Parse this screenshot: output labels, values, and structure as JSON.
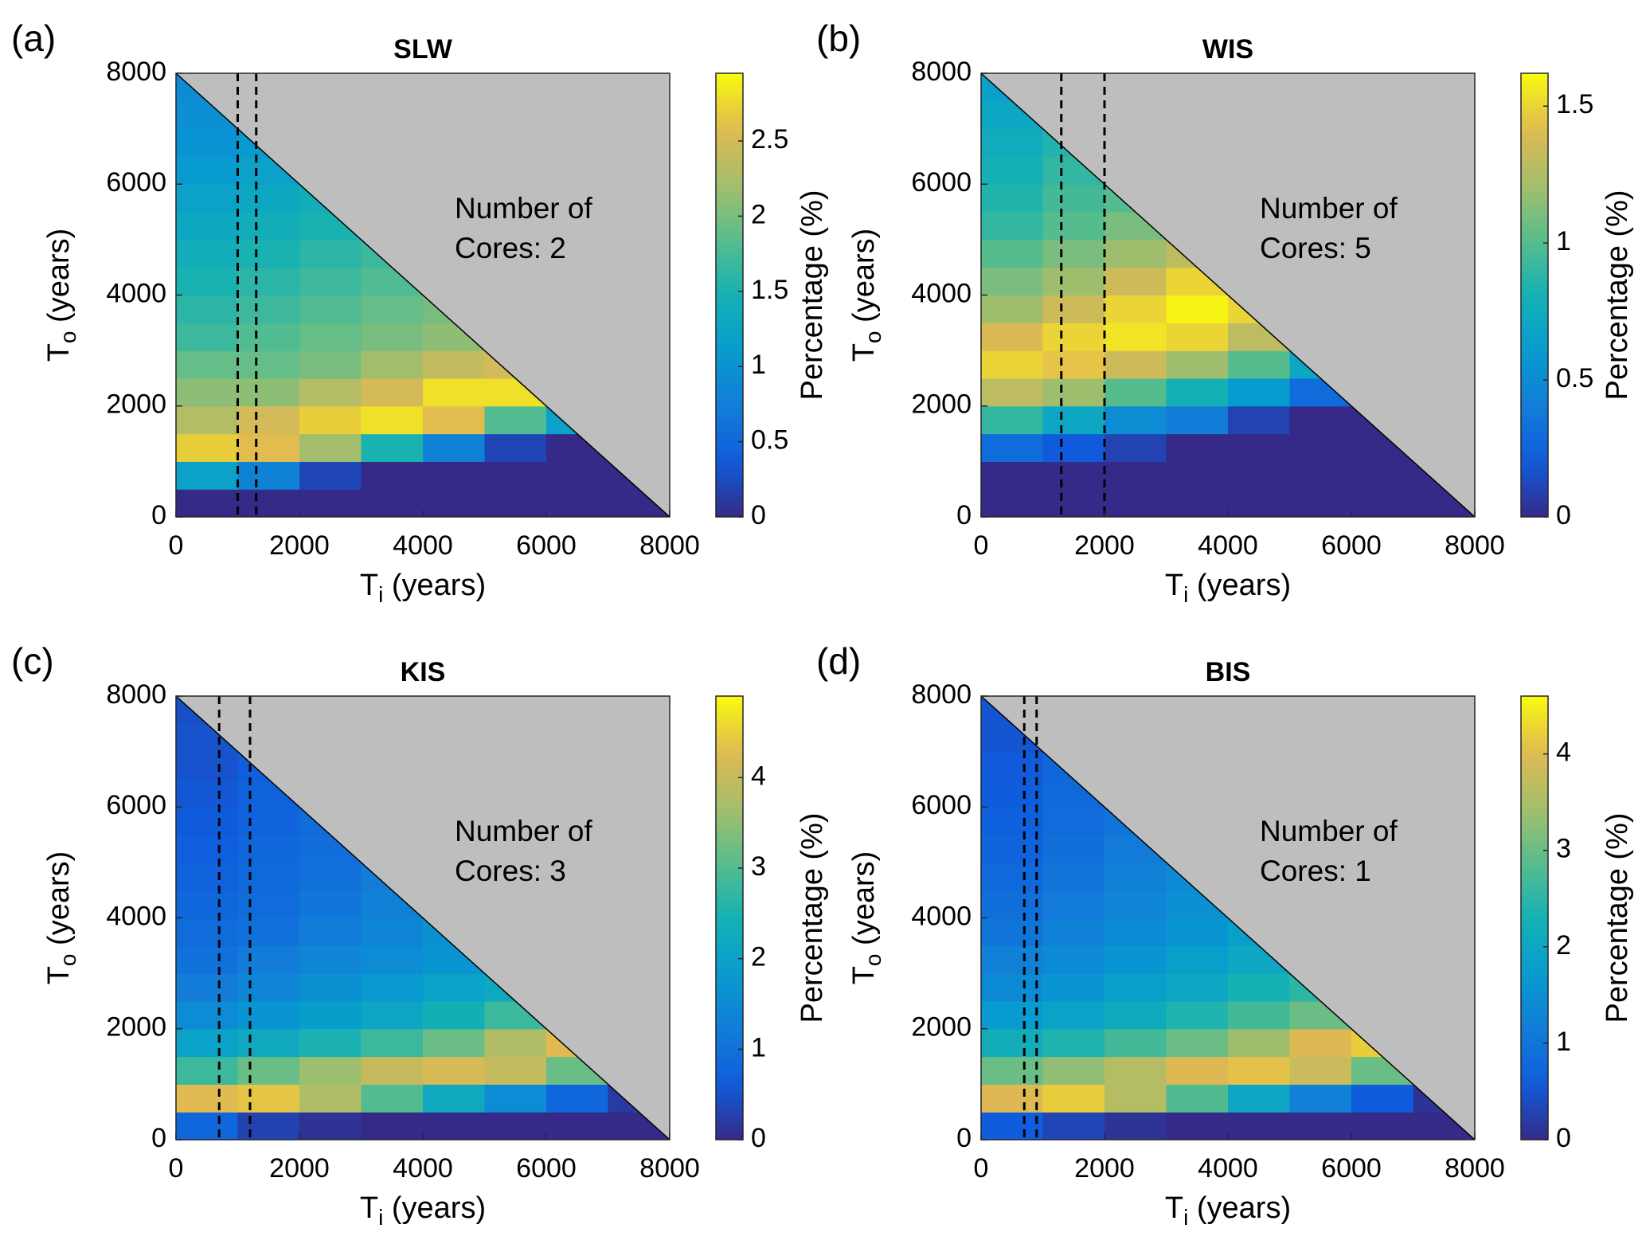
{
  "chart_data": [
    {
      "type": "heatmap",
      "panel_label": "(a)",
      "title": "SLW",
      "xlabel": [
        "T",
        "i",
        " (years)"
      ],
      "ylabel": [
        "T",
        "o",
        " (years)"
      ],
      "colorbar_label": "Percentage (%)",
      "annotation": [
        "Number of",
        "Cores: 2"
      ],
      "vlines": [
        1000,
        1300
      ],
      "xlim": [
        0,
        8000
      ],
      "ylim": [
        0,
        8000
      ],
      "xticks": [
        0,
        2000,
        4000,
        6000,
        8000
      ],
      "yticks": [
        0,
        2000,
        4000,
        6000,
        8000
      ],
      "clim": [
        0,
        2.95
      ],
      "cticks": [
        0,
        0.5,
        1,
        1.5,
        2,
        2.5
      ],
      "colormap": "parula",
      "background": "#bebebe",
      "xbins": [
        0,
        1000,
        2000,
        3000,
        4000,
        5000,
        6000,
        7000,
        8000
      ],
      "ybins": [
        0,
        500,
        1000,
        1500,
        2000,
        2500,
        3000,
        3500,
        4000,
        4500,
        5000,
        5500,
        6000,
        6500,
        7000,
        7500,
        8000
      ],
      "z": [
        [
          0,
          1.2,
          2.7,
          2.3,
          2.1,
          1.9,
          1.7,
          1.6,
          1.5,
          1.4,
          1.3,
          1.2,
          1.1,
          1.0,
          0.95,
          0.9
        ],
        [
          0,
          0.8,
          2.6,
          2.5,
          2.1,
          1.9,
          1.8,
          1.7,
          1.6,
          1.5,
          1.4,
          1.3,
          1.2,
          1.1,
          null,
          null
        ],
        [
          0,
          0.2,
          2.2,
          2.7,
          2.3,
          2.0,
          1.9,
          1.8,
          1.7,
          1.6,
          1.5,
          1.4,
          null,
          null,
          null,
          null
        ],
        [
          0,
          0,
          1.5,
          2.8,
          2.5,
          2.2,
          2.0,
          1.9,
          1.8,
          1.7,
          null,
          null,
          null,
          null,
          null,
          null
        ],
        [
          0,
          0,
          0.8,
          2.6,
          2.8,
          2.4,
          2.1,
          2.0,
          null,
          null,
          null,
          null,
          null,
          null,
          null,
          null
        ],
        [
          0,
          0,
          0.2,
          1.8,
          2.8,
          2.5,
          null,
          null,
          null,
          null,
          null,
          null,
          null,
          null,
          null,
          null
        ],
        [
          0,
          0,
          0,
          1.2,
          null,
          null,
          null,
          null,
          null,
          null,
          null,
          null,
          null,
          null,
          null,
          null
        ],
        [
          0,
          0,
          null,
          null,
          null,
          null,
          null,
          null,
          null,
          null,
          null,
          null,
          null,
          null,
          null,
          null
        ]
      ]
    },
    {
      "type": "heatmap",
      "panel_label": "(b)",
      "title": "WIS",
      "xlabel": [
        "T",
        "i",
        " (years)"
      ],
      "ylabel": [
        "T",
        "o",
        " (years)"
      ],
      "colorbar_label": "Percentage (%)",
      "annotation": [
        "Number of",
        "Cores: 5"
      ],
      "vlines": [
        1300,
        2000
      ],
      "xlim": [
        0,
        8000
      ],
      "ylim": [
        0,
        8000
      ],
      "xticks": [
        0,
        2000,
        4000,
        6000,
        8000
      ],
      "yticks": [
        0,
        2000,
        4000,
        6000,
        8000
      ],
      "clim": [
        0,
        1.62
      ],
      "cticks": [
        0,
        0.5,
        1,
        1.5
      ],
      "colormap": "parula",
      "background": "#bebebe",
      "xbins": [
        0,
        1000,
        2000,
        3000,
        4000,
        5000,
        6000,
        7000,
        8000
      ],
      "ybins": [
        0,
        500,
        1000,
        1500,
        2000,
        2500,
        3000,
        3500,
        4000,
        4500,
        5000,
        5500,
        6000,
        6500,
        7000,
        7500,
        8000
      ],
      "z": [
        [
          0,
          0,
          0.3,
          0.9,
          1.3,
          1.5,
          1.4,
          1.2,
          1.1,
          1.0,
          0.9,
          0.85,
          0.8,
          0.75,
          0.7,
          0.65
        ],
        [
          0,
          0,
          0.2,
          0.7,
          1.2,
          1.45,
          1.5,
          1.35,
          1.2,
          1.1,
          1.0,
          0.95,
          0.9,
          0.85,
          null,
          null
        ],
        [
          0,
          0,
          0.1,
          0.5,
          1.0,
          1.35,
          1.55,
          1.5,
          1.35,
          1.2,
          1.1,
          1.0,
          null,
          null,
          null,
          null
        ],
        [
          0,
          0,
          0,
          0.4,
          0.8,
          1.2,
          1.5,
          1.6,
          1.5,
          1.3,
          null,
          null,
          null,
          null,
          null,
          null
        ],
        [
          0,
          0,
          0,
          0.1,
          0.6,
          1.0,
          1.3,
          1.5,
          null,
          null,
          null,
          null,
          null,
          null,
          null,
          null
        ],
        [
          0,
          0,
          0,
          0,
          0.3,
          0.7,
          null,
          null,
          null,
          null,
          null,
          null,
          null,
          null,
          null,
          null
        ],
        [
          0,
          0,
          0,
          0,
          null,
          null,
          null,
          null,
          null,
          null,
          null,
          null,
          null,
          null,
          null,
          null
        ],
        [
          0,
          0,
          null,
          null,
          null,
          null,
          null,
          null,
          null,
          null,
          null,
          null,
          null,
          null,
          null,
          null
        ]
      ]
    },
    {
      "type": "heatmap",
      "panel_label": "(c)",
      "title": "KIS",
      "xlabel": [
        "T",
        "i",
        " (years)"
      ],
      "ylabel": [
        "T",
        "o",
        " (years)"
      ],
      "colorbar_label": "Percentage (%)",
      "annotation": [
        "Number of",
        "Cores: 3"
      ],
      "vlines": [
        700,
        1200
      ],
      "xlim": [
        0,
        8000
      ],
      "ylim": [
        0,
        8000
      ],
      "xticks": [
        0,
        2000,
        4000,
        6000,
        8000
      ],
      "yticks": [
        0,
        2000,
        4000,
        6000,
        8000
      ],
      "clim": [
        0,
        4.9
      ],
      "cticks": [
        0,
        1,
        2,
        3,
        4
      ],
      "colormap": "parula",
      "background": "#bebebe",
      "xbins": [
        0,
        1000,
        2000,
        3000,
        4000,
        5000,
        6000,
        7000,
        8000
      ],
      "ybins": [
        0,
        500,
        1000,
        1500,
        2000,
        2500,
        3000,
        3500,
        4000,
        4500,
        5000,
        5500,
        6000,
        6500,
        7000,
        7500,
        8000
      ],
      "z": [
        [
          0.8,
          4.3,
          2.8,
          2.0,
          1.5,
          1.2,
          1.0,
          0.9,
          0.8,
          0.7,
          0.65,
          0.6,
          0.55,
          0.5,
          0.5,
          0.45
        ],
        [
          0.3,
          4.4,
          3.2,
          2.2,
          1.7,
          1.4,
          1.2,
          1.0,
          0.9,
          0.85,
          0.8,
          0.75,
          0.7,
          0.65,
          null,
          null
        ],
        [
          0.1,
          3.8,
          3.6,
          2.5,
          1.9,
          1.6,
          1.4,
          1.2,
          1.1,
          1.0,
          0.95,
          0.9,
          null,
          null,
          null,
          null
        ],
        [
          0,
          3.0,
          4.0,
          2.8,
          2.1,
          1.8,
          1.5,
          1.4,
          1.3,
          1.2,
          null,
          null,
          null,
          null,
          null,
          null
        ],
        [
          0,
          2.2,
          4.2,
          3.2,
          2.4,
          2.0,
          1.7,
          1.6,
          null,
          null,
          null,
          null,
          null,
          null,
          null,
          null
        ],
        [
          0,
          1.5,
          4.0,
          3.8,
          2.8,
          2.2,
          null,
          null,
          null,
          null,
          null,
          null,
          null,
          null,
          null,
          null
        ],
        [
          0,
          0.8,
          3.2,
          4.3,
          null,
          null,
          null,
          null,
          null,
          null,
          null,
          null,
          null,
          null,
          null,
          null
        ],
        [
          0,
          0.2,
          null,
          null,
          null,
          null,
          null,
          null,
          null,
          null,
          null,
          null,
          null,
          null,
          null,
          null
        ]
      ]
    },
    {
      "type": "heatmap",
      "panel_label": "(d)",
      "title": "BIS",
      "xlabel": [
        "T",
        "i",
        " (years)"
      ],
      "ylabel": [
        "T",
        "o",
        " (years)"
      ],
      "colorbar_label": "Percentage (%)",
      "annotation": [
        "Number of",
        "Cores: 1"
      ],
      "vlines": [
        700,
        900
      ],
      "xlim": [
        0,
        8000
      ],
      "ylim": [
        0,
        8000
      ],
      "xticks": [
        0,
        2000,
        4000,
        6000,
        8000
      ],
      "yticks": [
        0,
        2000,
        4000,
        6000,
        8000
      ],
      "clim": [
        0,
        4.6
      ],
      "cticks": [
        0,
        1,
        2,
        3,
        4
      ],
      "colormap": "parula",
      "background": "#bebebe",
      "xbins": [
        0,
        1000,
        2000,
        3000,
        4000,
        5000,
        6000,
        7000,
        8000
      ],
      "ybins": [
        0,
        500,
        1000,
        1500,
        2000,
        2500,
        3000,
        3500,
        4000,
        4500,
        5000,
        5500,
        6000,
        6500,
        7000,
        7500,
        8000
      ],
      "z": [
        [
          0.6,
          4.0,
          3.0,
          2.2,
          1.7,
          1.4,
          1.2,
          1.0,
          0.9,
          0.8,
          0.7,
          0.65,
          0.6,
          0.55,
          0.5,
          0.5
        ],
        [
          0.3,
          4.2,
          3.3,
          2.4,
          1.9,
          1.6,
          1.4,
          1.2,
          1.1,
          1.0,
          0.9,
          0.85,
          0.8,
          0.75,
          null,
          null
        ],
        [
          0.1,
          3.6,
          3.6,
          2.7,
          2.1,
          1.8,
          1.6,
          1.4,
          1.3,
          1.2,
          1.1,
          1.0,
          null,
          null,
          null,
          null
        ],
        [
          0,
          2.8,
          4.0,
          3.0,
          2.4,
          2.0,
          1.8,
          1.6,
          1.5,
          1.4,
          null,
          null,
          null,
          null,
          null,
          null
        ],
        [
          0,
          2.0,
          4.1,
          3.4,
          2.7,
          2.3,
          2.0,
          1.8,
          null,
          null,
          null,
          null,
          null,
          null,
          null,
          null
        ],
        [
          0,
          1.2,
          3.8,
          4.0,
          3.0,
          2.5,
          null,
          null,
          null,
          null,
          null,
          null,
          null,
          null,
          null,
          null
        ],
        [
          0,
          0.6,
          3.0,
          4.2,
          null,
          null,
          null,
          null,
          null,
          null,
          null,
          null,
          null,
          null,
          null,
          null
        ],
        [
          0,
          0.1,
          null,
          null,
          null,
          null,
          null,
          null,
          null,
          null,
          null,
          null,
          null,
          null,
          null,
          null
        ]
      ]
    }
  ]
}
